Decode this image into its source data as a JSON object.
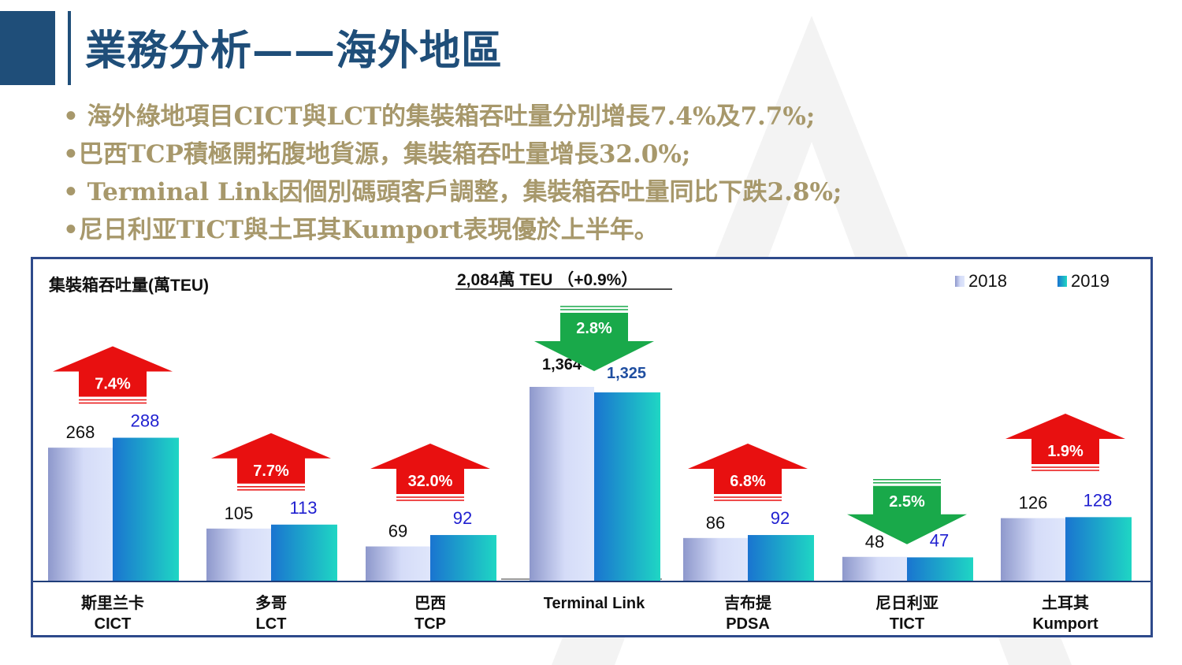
{
  "page": {
    "title": "業務分析——海外地區",
    "bullets": [
      "• 海外綠地項目CICT與LCT的集裝箱吞吐量分別增長7.4%及7.7%;",
      "•巴西TCP積極開拓腹地貨源，集裝箱吞吐量增長32.0%;",
      "• Terminal Link因個別碼頭客戶調整，集裝箱吞吐量同比下跌2.8%;",
      "•尼日利亚TICT與土耳其Kumport表現優於上半年。"
    ]
  },
  "colors": {
    "title": "#1f4e79",
    "bullet_text": "#a7986b",
    "frame": "#2e4a8b",
    "series_2018": "#c9d3f5",
    "series_2019": "#1fb5c9",
    "label_2019": "#1f1fd0",
    "label_terminal_2019": "#1f4ea0",
    "arrow_up": "#e81010",
    "arrow_down": "#19a94a"
  },
  "chart_data": {
    "type": "bar",
    "ylabel": "集裝箱吞吐量(萬TEU)",
    "subtitle": "2,084萬 TEU （+0.9%）",
    "legend_position": "top-right",
    "grid": false,
    "ylim": [
      0,
      1364
    ],
    "categories": [
      [
        "斯里兰卡",
        "CICT"
      ],
      [
        "多哥",
        "LCT"
      ],
      [
        "巴西",
        "TCP"
      ],
      [
        "Terminal Link",
        ""
      ],
      [
        "吉布提",
        "PDSA"
      ],
      [
        "尼日利亚",
        "TICT"
      ],
      [
        "土耳其",
        "Kumport"
      ]
    ],
    "series": [
      {
        "name": "2018",
        "values": [
          268,
          105,
          69,
          1364,
          86,
          48,
          126
        ],
        "labels": [
          "268",
          "105",
          "69",
          "1,364",
          "86",
          "48",
          "126"
        ]
      },
      {
        "name": "2019",
        "values": [
          288,
          113,
          92,
          1325,
          92,
          47,
          128
        ],
        "labels": [
          "288",
          "113",
          "92",
          "1,325",
          "92",
          "47",
          "128"
        ]
      }
    ],
    "changes": [
      {
        "label": "7.4%",
        "direction": "up"
      },
      {
        "label": "7.7%",
        "direction": "up"
      },
      {
        "label": "32.0%",
        "direction": "up"
      },
      {
        "label": "2.8%",
        "direction": "down"
      },
      {
        "label": "6.8%",
        "direction": "up"
      },
      {
        "label": "2.5%",
        "direction": "down"
      },
      {
        "label": "1.9%",
        "direction": "up"
      }
    ]
  }
}
